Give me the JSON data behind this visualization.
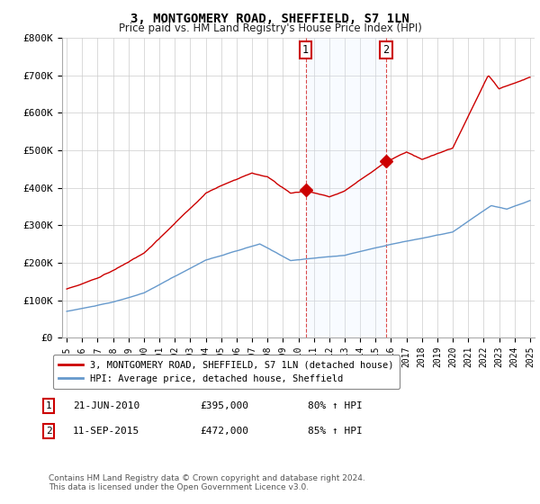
{
  "title": "3, MONTGOMERY ROAD, SHEFFIELD, S7 1LN",
  "subtitle": "Price paid vs. HM Land Registry's House Price Index (HPI)",
  "ylim": [
    0,
    800000
  ],
  "yticks": [
    0,
    100000,
    200000,
    300000,
    400000,
    500000,
    600000,
    700000,
    800000
  ],
  "ytick_labels": [
    "£0",
    "£100K",
    "£200K",
    "£300K",
    "£400K",
    "£500K",
    "£600K",
    "£700K",
    "£800K"
  ],
  "xlim": [
    1994.7,
    2025.3
  ],
  "sale1_year": 2010.47,
  "sale1_price": 395000,
  "sale1_label": "1",
  "sale1_date": "21-JUN-2010",
  "sale1_amount": "£395,000",
  "sale1_hpi": "80% ↑ HPI",
  "sale2_year": 2015.69,
  "sale2_price": 472000,
  "sale2_label": "2",
  "sale2_date": "11-SEP-2015",
  "sale2_amount": "£472,000",
  "sale2_hpi": "85% ↑ HPI",
  "red_color": "#cc0000",
  "blue_color": "#6699cc",
  "shaded_color": "#ddeeff",
  "legend_label_red": "3, MONTGOMERY ROAD, SHEFFIELD, S7 1LN (detached house)",
  "legend_label_blue": "HPI: Average price, detached house, Sheffield",
  "footnote": "Contains HM Land Registry data © Crown copyright and database right 2024.\nThis data is licensed under the Open Government Licence v3.0."
}
